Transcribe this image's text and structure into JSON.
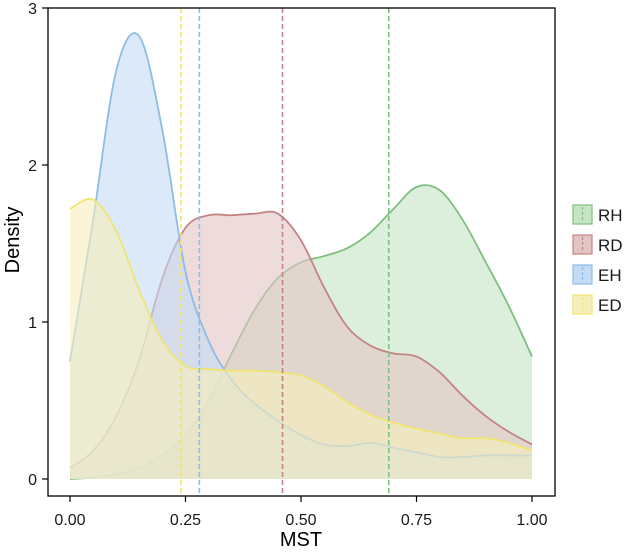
{
  "chart_data": {
    "type": "area",
    "xlabel": "MST",
    "ylabel": "Density",
    "xlim": [
      0,
      1
    ],
    "ylim": [
      0,
      3
    ],
    "x_ticks": [
      0,
      0.25,
      0.5,
      0.75,
      1
    ],
    "x_tick_labels": [
      "0.00",
      "0.25",
      "0.50",
      "0.75",
      "1.00"
    ],
    "y_ticks": [
      0,
      1,
      2,
      3
    ],
    "y_tick_labels": [
      "0",
      "1",
      "2",
      "3"
    ],
    "grid": false,
    "legend_position": "right",
    "x": [
      0,
      0.05,
      0.1,
      0.15,
      0.2,
      0.25,
      0.3,
      0.35,
      0.4,
      0.45,
      0.5,
      0.55,
      0.6,
      0.65,
      0.7,
      0.75,
      0.8,
      0.85,
      0.9,
      0.95,
      1
    ],
    "series": [
      {
        "name": "RH",
        "color": "#7fbf7f",
        "fill": "#c5e5c5",
        "mean_line": 0.69,
        "values": [
          0.0,
          0.01,
          0.03,
          0.07,
          0.15,
          0.28,
          0.5,
          0.8,
          1.08,
          1.28,
          1.38,
          1.42,
          1.47,
          1.57,
          1.72,
          1.86,
          1.84,
          1.65,
          1.38,
          1.1,
          0.78
        ]
      },
      {
        "name": "RD",
        "color": "#c48484",
        "fill": "#e3c4c4",
        "mean_line": 0.46,
        "values": [
          0.07,
          0.18,
          0.4,
          0.76,
          1.28,
          1.6,
          1.68,
          1.68,
          1.69,
          1.69,
          1.52,
          1.22,
          0.97,
          0.85,
          0.8,
          0.78,
          0.68,
          0.53,
          0.4,
          0.3,
          0.22
        ]
      },
      {
        "name": "EH",
        "color": "#8fbce6",
        "fill": "#c3dbf3",
        "mean_line": 0.28,
        "values": [
          0.75,
          1.65,
          2.6,
          2.82,
          2.22,
          1.32,
          0.88,
          0.63,
          0.48,
          0.37,
          0.28,
          0.22,
          0.21,
          0.23,
          0.2,
          0.17,
          0.14,
          0.14,
          0.15,
          0.15,
          0.15
        ]
      },
      {
        "name": "ED",
        "color": "#f2e470",
        "fill": "#f7efba",
        "mean_line": 0.24,
        "values": [
          1.72,
          1.78,
          1.58,
          1.2,
          0.88,
          0.72,
          0.7,
          0.69,
          0.69,
          0.68,
          0.66,
          0.59,
          0.49,
          0.41,
          0.36,
          0.32,
          0.29,
          0.26,
          0.26,
          0.23,
          0.18
        ]
      }
    ]
  }
}
